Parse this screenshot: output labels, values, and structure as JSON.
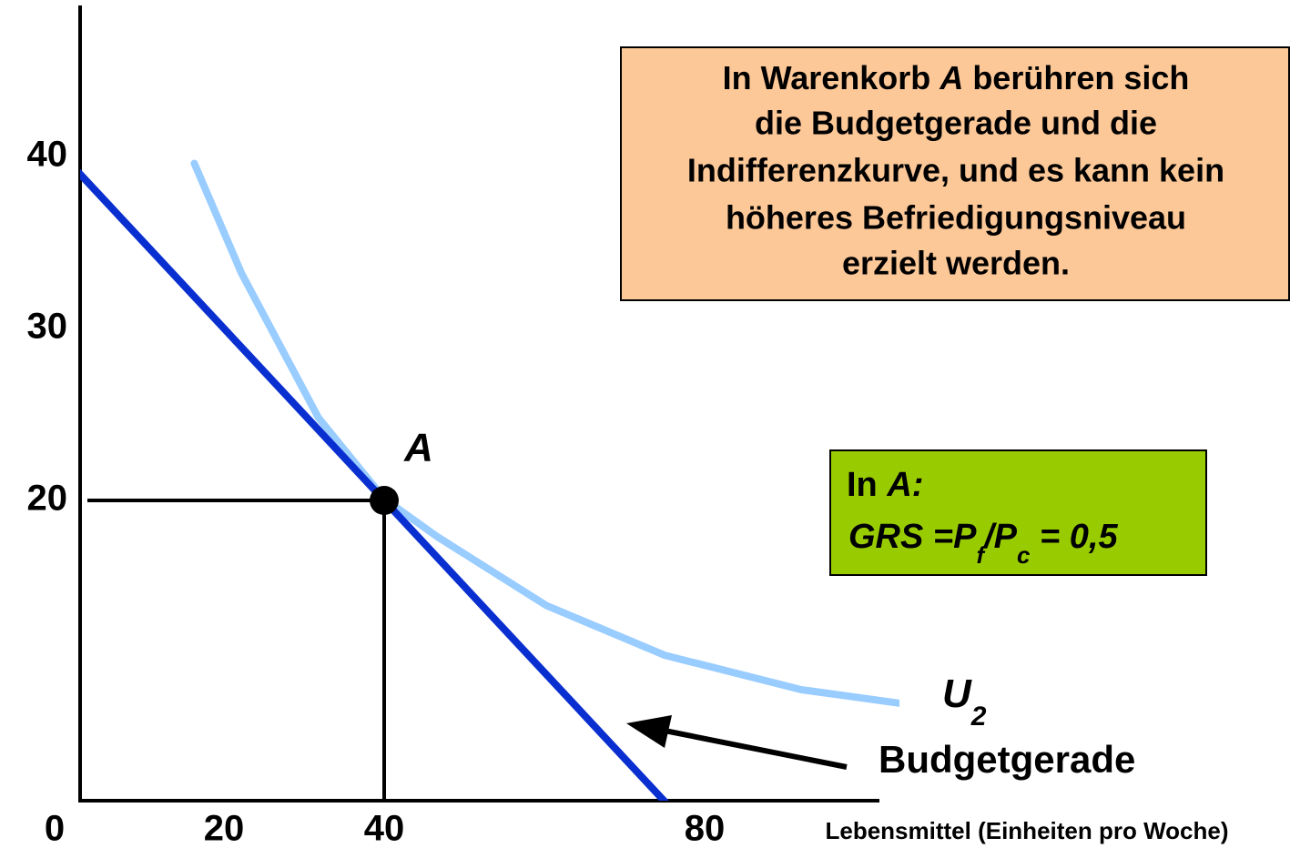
{
  "chart_data": {
    "type": "line",
    "x_label": "Lebensmittel (Einheiten pro Woche)",
    "xlim": [
      0,
      110
    ],
    "ylim": [
      0,
      48
    ],
    "xticks": [
      0,
      20,
      40,
      80
    ],
    "yticks": [
      20,
      30,
      40
    ],
    "grid": false,
    "series": [
      {
        "color": "#0a2fd0",
        "x": [
          0,
          80
        ],
        "values": [
          40,
          0
        ]
      },
      {
        "color": "#99ccff",
        "x": [
          16.3,
          22.2,
          31.8,
          40,
          46.6,
          60.2,
          75,
          92,
          106
        ],
        "values": [
          39.6,
          33.2,
          24.8,
          20.1,
          17.9,
          13.9,
          11.0,
          9.0,
          8.1
        ]
      }
    ],
    "point": {
      "x": 40,
      "y": 20,
      "label": "A"
    },
    "curve_label": {
      "text": "U",
      "sub": "2"
    },
    "line_label": "Budgetgerade",
    "box_text": {
      "line1": [
        "In Warenkorb ",
        "A",
        " berühren sich"
      ],
      "lines": [
        "die Budgetgerade und die",
        "Indifferenzkurve, und es kann kein",
        "höheres Befriedigungsniveau",
        "erzielt werden."
      ]
    },
    "green_box": {
      "line1": [
        "In ",
        "A:"
      ],
      "line2": [
        "GRS =P",
        "f",
        "/P",
        "c",
        " = 0,5"
      ]
    }
  }
}
